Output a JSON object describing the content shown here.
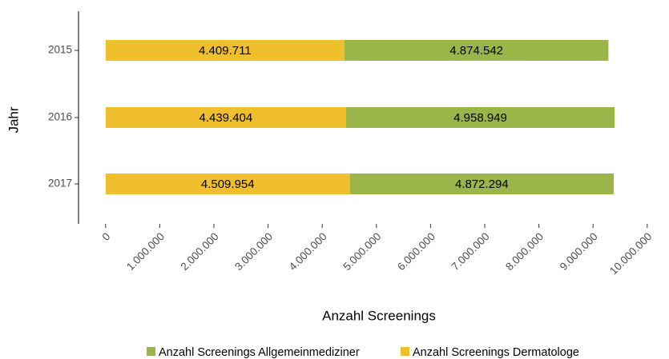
{
  "chart_data": {
    "type": "stacked-barh",
    "categories": [
      "2015",
      "2016",
      "2017"
    ],
    "series": [
      {
        "name": "Anzahl Screenings Allgemeinmediziner",
        "color": "#9ab54a",
        "values": [
          4874542,
          4958949,
          4872294
        ],
        "value_labels": [
          "4.874.542",
          "4.958.949",
          "4.872.294"
        ]
      },
      {
        "name": "Anzahl Screenings Dermatologe",
        "color": "#f0bf2c",
        "values": [
          4409711,
          4439404,
          4509954
        ],
        "value_labels": [
          "4.409.711",
          "4.439.404",
          "4.509.954"
        ]
      }
    ],
    "xlabel": "Anzahl Screenings",
    "ylabel": "Jahr",
    "xlim": [
      -500000,
      10500000
    ],
    "xticks": [
      0,
      {
        "value": 1000000,
        "label": "1.000.000"
      },
      {
        "value": 2000000,
        "label": "2.000.000"
      },
      {
        "value": 3000000,
        "label": "3.000.000"
      },
      {
        "value": 4000000,
        "label": "4.000.000"
      },
      {
        "value": 5000000,
        "label": "5.000.000"
      },
      {
        "value": 6000000,
        "label": "6.000.000"
      },
      {
        "value": 7000000,
        "label": "7.000.000"
      },
      {
        "value": 8000000,
        "label": "8.000.000"
      },
      {
        "value": 9000000,
        "label": "9.000.000"
      },
      {
        "value": 10000000,
        "label": "10.000.000"
      }
    ],
    "legend": "bottom"
  }
}
